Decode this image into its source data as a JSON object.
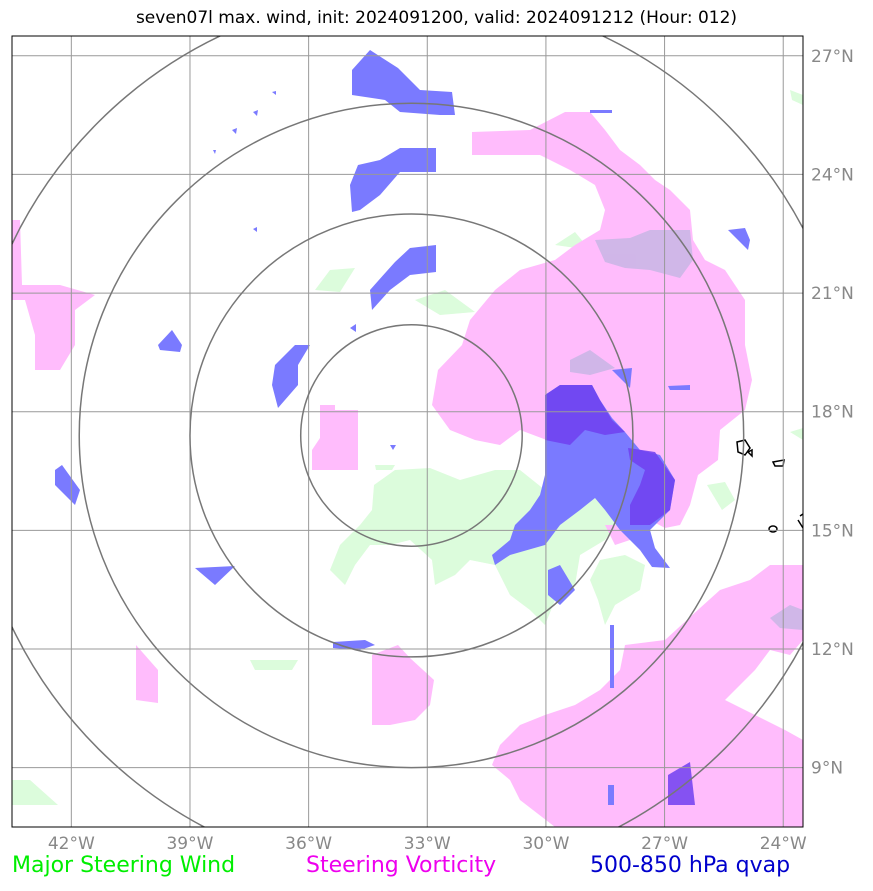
{
  "title": "seven07l max. wind, init: 2024091200, valid: 2024091212 (Hour: 012)",
  "map": {
    "lon_range": [
      -43.5,
      -23.5
    ],
    "lat_range": [
      7.5,
      27.5
    ],
    "lon_ticks": [
      {
        "value": -42,
        "label": "42°W"
      },
      {
        "value": -39,
        "label": "39°W"
      },
      {
        "value": -36,
        "label": "36°W"
      },
      {
        "value": -33,
        "label": "33°W"
      },
      {
        "value": -30,
        "label": "30°W"
      },
      {
        "value": -27,
        "label": "27°W"
      },
      {
        "value": -24,
        "label": "24°W"
      }
    ],
    "lat_ticks": [
      {
        "value": 27,
        "label": "27°N"
      },
      {
        "value": 24,
        "label": "24°N"
      },
      {
        "value": 21,
        "label": "21°N"
      },
      {
        "value": 18,
        "label": "18°N"
      },
      {
        "value": 15,
        "label": "15°N"
      },
      {
        "value": 12,
        "label": "12°N"
      },
      {
        "value": 9,
        "label": "9°N"
      }
    ],
    "range_ring_center": {
      "lon": -33.4,
      "lat": 17.4
    },
    "range_ring_radii_deg": [
      2.8,
      5.6,
      8.4,
      11.2
    ],
    "grid": true
  },
  "legend": [
    {
      "label": "Major Steering Wind",
      "color": "#00ee00"
    },
    {
      "label": "Steering Vorticity",
      "color": "#ee00ee"
    },
    {
      "label": "500-850 hPa qvap",
      "color": "#0000cc"
    }
  ],
  "colors": {
    "wind": "#dcfcdc",
    "vorticity": "#ffbcfc",
    "qvap": "#7a7aff",
    "qvap_dark": "#7040f0",
    "grid": "#999999",
    "rings": "#777777"
  }
}
